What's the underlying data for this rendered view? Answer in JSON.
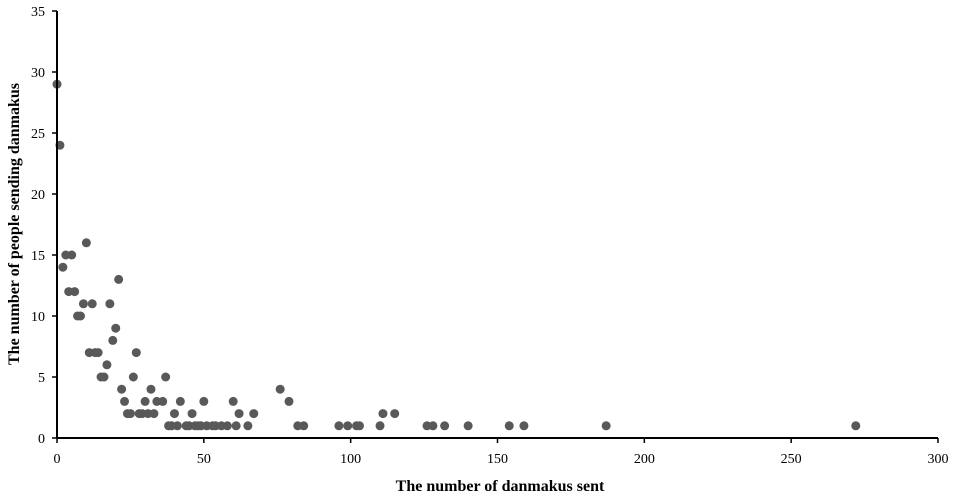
{
  "chart_data": {
    "type": "scatter",
    "title": "",
    "xlabel": "The number of danmakus sent",
    "ylabel": "The number of people sending danmakus",
    "xlim": [
      0,
      300
    ],
    "ylim": [
      0,
      35
    ],
    "x_ticks": [
      "0",
      "50",
      "100",
      "150",
      "200",
      "250",
      "300"
    ],
    "y_ticks": [
      "0",
      "5",
      "10",
      "15",
      "20",
      "25",
      "30",
      "35"
    ],
    "grid": false,
    "legend": "none",
    "point_color": "#595959",
    "points": [
      [
        0,
        29
      ],
      [
        1,
        24
      ],
      [
        2,
        14
      ],
      [
        3,
        15
      ],
      [
        4,
        12
      ],
      [
        5,
        15
      ],
      [
        6,
        12
      ],
      [
        7,
        10
      ],
      [
        8,
        10
      ],
      [
        9,
        11
      ],
      [
        10,
        16
      ],
      [
        11,
        7
      ],
      [
        12,
        11
      ],
      [
        13,
        7
      ],
      [
        14,
        7
      ],
      [
        15,
        5
      ],
      [
        16,
        5
      ],
      [
        17,
        6
      ],
      [
        18,
        11
      ],
      [
        19,
        8
      ],
      [
        20,
        9
      ],
      [
        21,
        13
      ],
      [
        22,
        4
      ],
      [
        23,
        3
      ],
      [
        24,
        2
      ],
      [
        25,
        2
      ],
      [
        26,
        5
      ],
      [
        27,
        7
      ],
      [
        28,
        2
      ],
      [
        29,
        2
      ],
      [
        30,
        3
      ],
      [
        31,
        2
      ],
      [
        32,
        4
      ],
      [
        33,
        2
      ],
      [
        34,
        3
      ],
      [
        36,
        3
      ],
      [
        37,
        5
      ],
      [
        38,
        1
      ],
      [
        39,
        1
      ],
      [
        40,
        2
      ],
      [
        41,
        1
      ],
      [
        42,
        3
      ],
      [
        44,
        1
      ],
      [
        45,
        1
      ],
      [
        46,
        2
      ],
      [
        47,
        1
      ],
      [
        48,
        1
      ],
      [
        49,
        1
      ],
      [
        50,
        3
      ],
      [
        51,
        1
      ],
      [
        53,
        1
      ],
      [
        54,
        1
      ],
      [
        56,
        1
      ],
      [
        58,
        1
      ],
      [
        60,
        3
      ],
      [
        61,
        1
      ],
      [
        62,
        2
      ],
      [
        65,
        1
      ],
      [
        67,
        2
      ],
      [
        76,
        4
      ],
      [
        79,
        3
      ],
      [
        82,
        1
      ],
      [
        84,
        1
      ],
      [
        96,
        1
      ],
      [
        99,
        1
      ],
      [
        102,
        1
      ],
      [
        103,
        1
      ],
      [
        110,
        1
      ],
      [
        111,
        2
      ],
      [
        115,
        2
      ],
      [
        126,
        1
      ],
      [
        128,
        1
      ],
      [
        132,
        1
      ],
      [
        140,
        1
      ],
      [
        154,
        1
      ],
      [
        159,
        1
      ],
      [
        187,
        1
      ],
      [
        272,
        1
      ]
    ]
  }
}
